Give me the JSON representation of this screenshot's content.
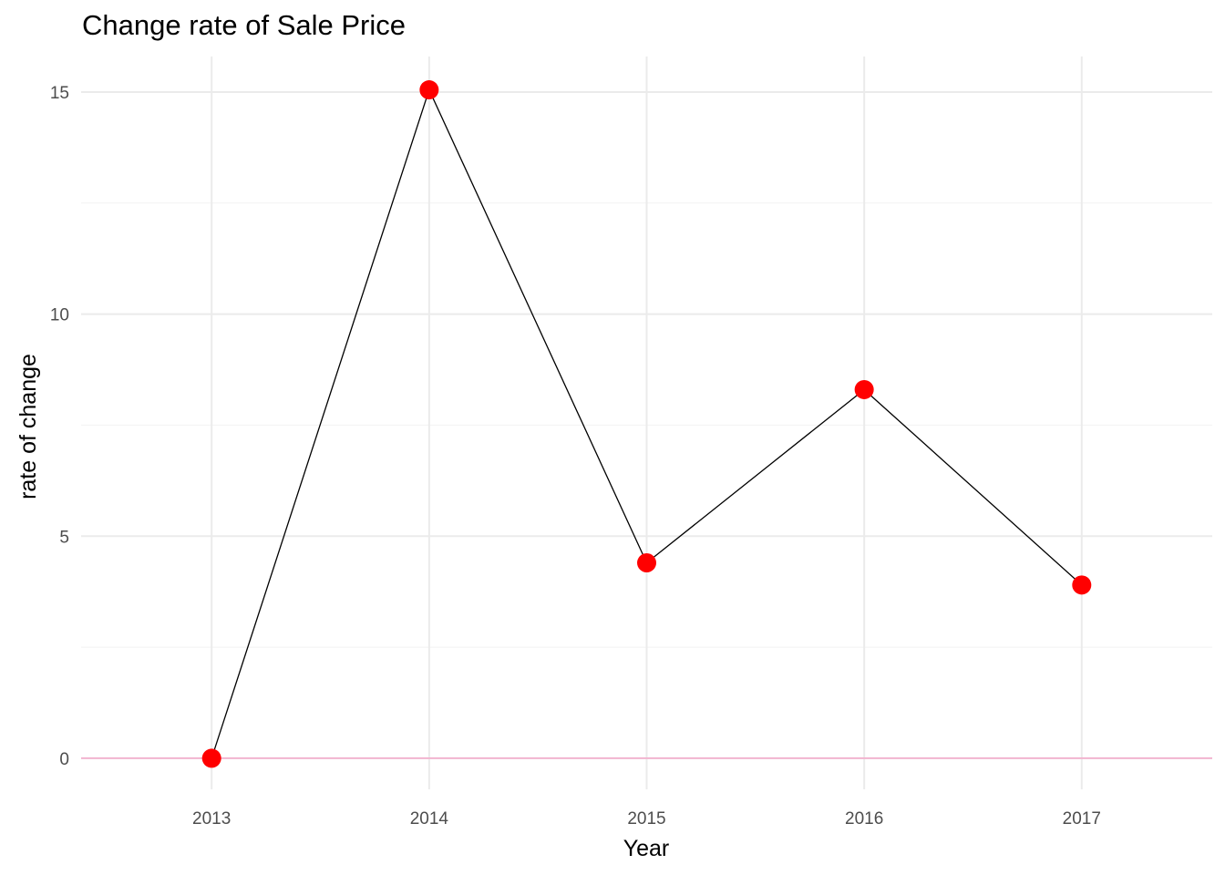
{
  "chart_data": {
    "type": "line",
    "title": "Change rate of Sale Price",
    "xlabel": "Year",
    "ylabel": "rate of change",
    "x": [
      "2013",
      "2014",
      "2015",
      "2016",
      "2017"
    ],
    "y": [
      0,
      15.05,
      4.4,
      8.3,
      3.9
    ],
    "xlim": [
      2012.4,
      2017.6
    ],
    "ylim": [
      -0.7,
      15.8
    ],
    "y_ticks": [
      "0",
      "5",
      "10",
      "15"
    ],
    "grid": true,
    "reference_line": {
      "y": 0,
      "color": "#f4a6c8"
    },
    "line_color": "#000000",
    "point_color": "#ff0000"
  }
}
